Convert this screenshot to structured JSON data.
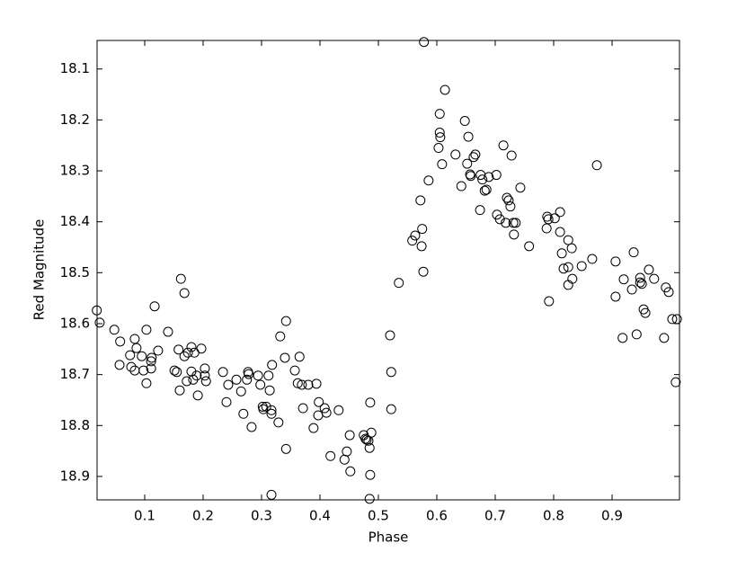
{
  "chart_data": {
    "type": "scatter",
    "x_label": "Phase",
    "y_label": "Red Magnitude",
    "color": "#000000",
    "xlim": [
      0.0185,
      1.0154
    ],
    "ylim": [
      18.946,
      18.044
    ],
    "xticks": [
      0.1,
      0.2,
      0.3,
      0.4,
      0.5,
      0.6,
      0.7,
      0.8,
      0.9
    ],
    "yticks": [
      18.1,
      18.2,
      18.3,
      18.4,
      18.5,
      18.6,
      18.7,
      18.8,
      18.9
    ],
    "x": [
      0.018,
      0.023,
      0.048,
      0.058,
      0.057,
      0.075,
      0.083,
      0.077,
      0.083,
      0.086,
      0.095,
      0.098,
      0.103,
      0.103,
      0.111,
      0.111,
      0.117,
      0.123,
      0.112,
      0.14,
      0.151,
      0.155,
      0.158,
      0.162,
      0.16,
      0.168,
      0.168,
      0.174,
      0.172,
      0.18,
      0.18,
      0.185,
      0.183,
      0.189,
      0.191,
      0.197,
      0.203,
      0.205,
      0.203,
      0.234,
      0.24,
      0.243,
      0.257,
      0.265,
      0.269,
      0.275,
      0.277,
      0.278,
      0.283,
      0.294,
      0.298,
      0.302,
      0.303,
      0.308,
      0.312,
      0.314,
      0.317,
      0.317,
      0.317,
      0.318,
      0.329,
      0.332,
      0.34,
      0.342,
      0.342,
      0.357,
      0.362,
      0.365,
      0.369,
      0.371,
      0.38,
      0.389,
      0.394,
      0.398,
      0.397,
      0.408,
      0.411,
      0.418,
      0.432,
      0.442,
      0.446,
      0.451,
      0.452,
      0.475,
      0.478,
      0.48,
      0.483,
      0.485,
      0.486,
      0.485,
      0.488,
      0.486,
      0.52,
      0.522,
      0.522,
      0.535,
      0.558,
      0.563,
      0.574,
      0.572,
      0.575,
      0.577,
      0.578,
      0.586,
      0.603,
      0.605,
      0.605,
      0.606,
      0.609,
      0.614,
      0.632,
      0.642,
      0.648,
      0.652,
      0.654,
      0.657,
      0.658,
      0.663,
      0.666,
      0.674,
      0.675,
      0.678,
      0.682,
      0.685,
      0.689,
      0.702,
      0.703,
      0.708,
      0.714,
      0.718,
      0.72,
      0.723,
      0.726,
      0.728,
      0.731,
      0.732,
      0.735,
      0.743,
      0.758,
      0.788,
      0.789,
      0.791,
      0.792,
      0.802,
      0.811,
      0.811,
      0.814,
      0.817,
      0.825,
      0.825,
      0.825,
      0.831,
      0.832,
      0.848,
      0.866,
      0.874,
      0.906,
      0.906,
      0.918,
      0.92,
      0.934,
      0.937,
      0.942,
      0.948,
      0.948,
      0.951,
      0.954,
      0.957,
      0.963,
      0.972,
      0.989,
      0.992,
      0.997,
      1.003,
      1.011,
      1.009
    ],
    "values": [
      18.574,
      18.598,
      18.612,
      18.635,
      18.681,
      18.662,
      18.63,
      18.685,
      18.692,
      18.648,
      18.664,
      18.692,
      18.612,
      18.717,
      18.674,
      18.688,
      18.566,
      18.653,
      18.667,
      18.616,
      18.692,
      18.695,
      18.651,
      18.512,
      18.731,
      18.54,
      18.664,
      18.657,
      18.713,
      18.646,
      18.694,
      18.657,
      18.71,
      18.702,
      18.741,
      18.649,
      18.688,
      18.713,
      18.702,
      18.695,
      18.754,
      18.72,
      18.71,
      18.733,
      18.777,
      18.71,
      18.695,
      18.699,
      18.803,
      18.702,
      18.72,
      18.763,
      18.768,
      18.763,
      18.702,
      18.731,
      18.777,
      18.936,
      18.77,
      18.681,
      18.794,
      18.625,
      18.667,
      18.595,
      18.846,
      18.692,
      18.717,
      18.665,
      18.72,
      18.766,
      18.72,
      18.805,
      18.718,
      18.754,
      18.78,
      18.766,
      18.775,
      18.86,
      18.77,
      18.867,
      18.851,
      18.819,
      18.89,
      18.819,
      18.826,
      18.828,
      18.83,
      18.844,
      18.755,
      18.944,
      18.814,
      18.897,
      18.623,
      18.695,
      18.768,
      18.52,
      18.437,
      18.427,
      18.448,
      18.358,
      18.414,
      18.498,
      18.047,
      18.319,
      18.255,
      18.188,
      18.225,
      18.234,
      18.287,
      18.141,
      18.268,
      18.33,
      18.202,
      18.286,
      18.233,
      18.307,
      18.31,
      18.273,
      18.268,
      18.377,
      18.308,
      18.317,
      18.339,
      18.337,
      18.312,
      18.308,
      18.386,
      18.395,
      18.25,
      18.402,
      18.353,
      18.358,
      18.37,
      18.27,
      18.402,
      18.425,
      18.402,
      18.333,
      18.448,
      18.413,
      18.39,
      18.395,
      18.556,
      18.393,
      18.381,
      18.42,
      18.462,
      18.492,
      18.436,
      18.489,
      18.524,
      18.452,
      18.512,
      18.487,
      18.473,
      18.289,
      18.478,
      18.547,
      18.628,
      18.513,
      18.533,
      18.46,
      18.621,
      18.51,
      18.519,
      18.522,
      18.572,
      18.579,
      18.494,
      18.512,
      18.628,
      18.529,
      18.538,
      18.591,
      18.591,
      18.715
    ]
  }
}
